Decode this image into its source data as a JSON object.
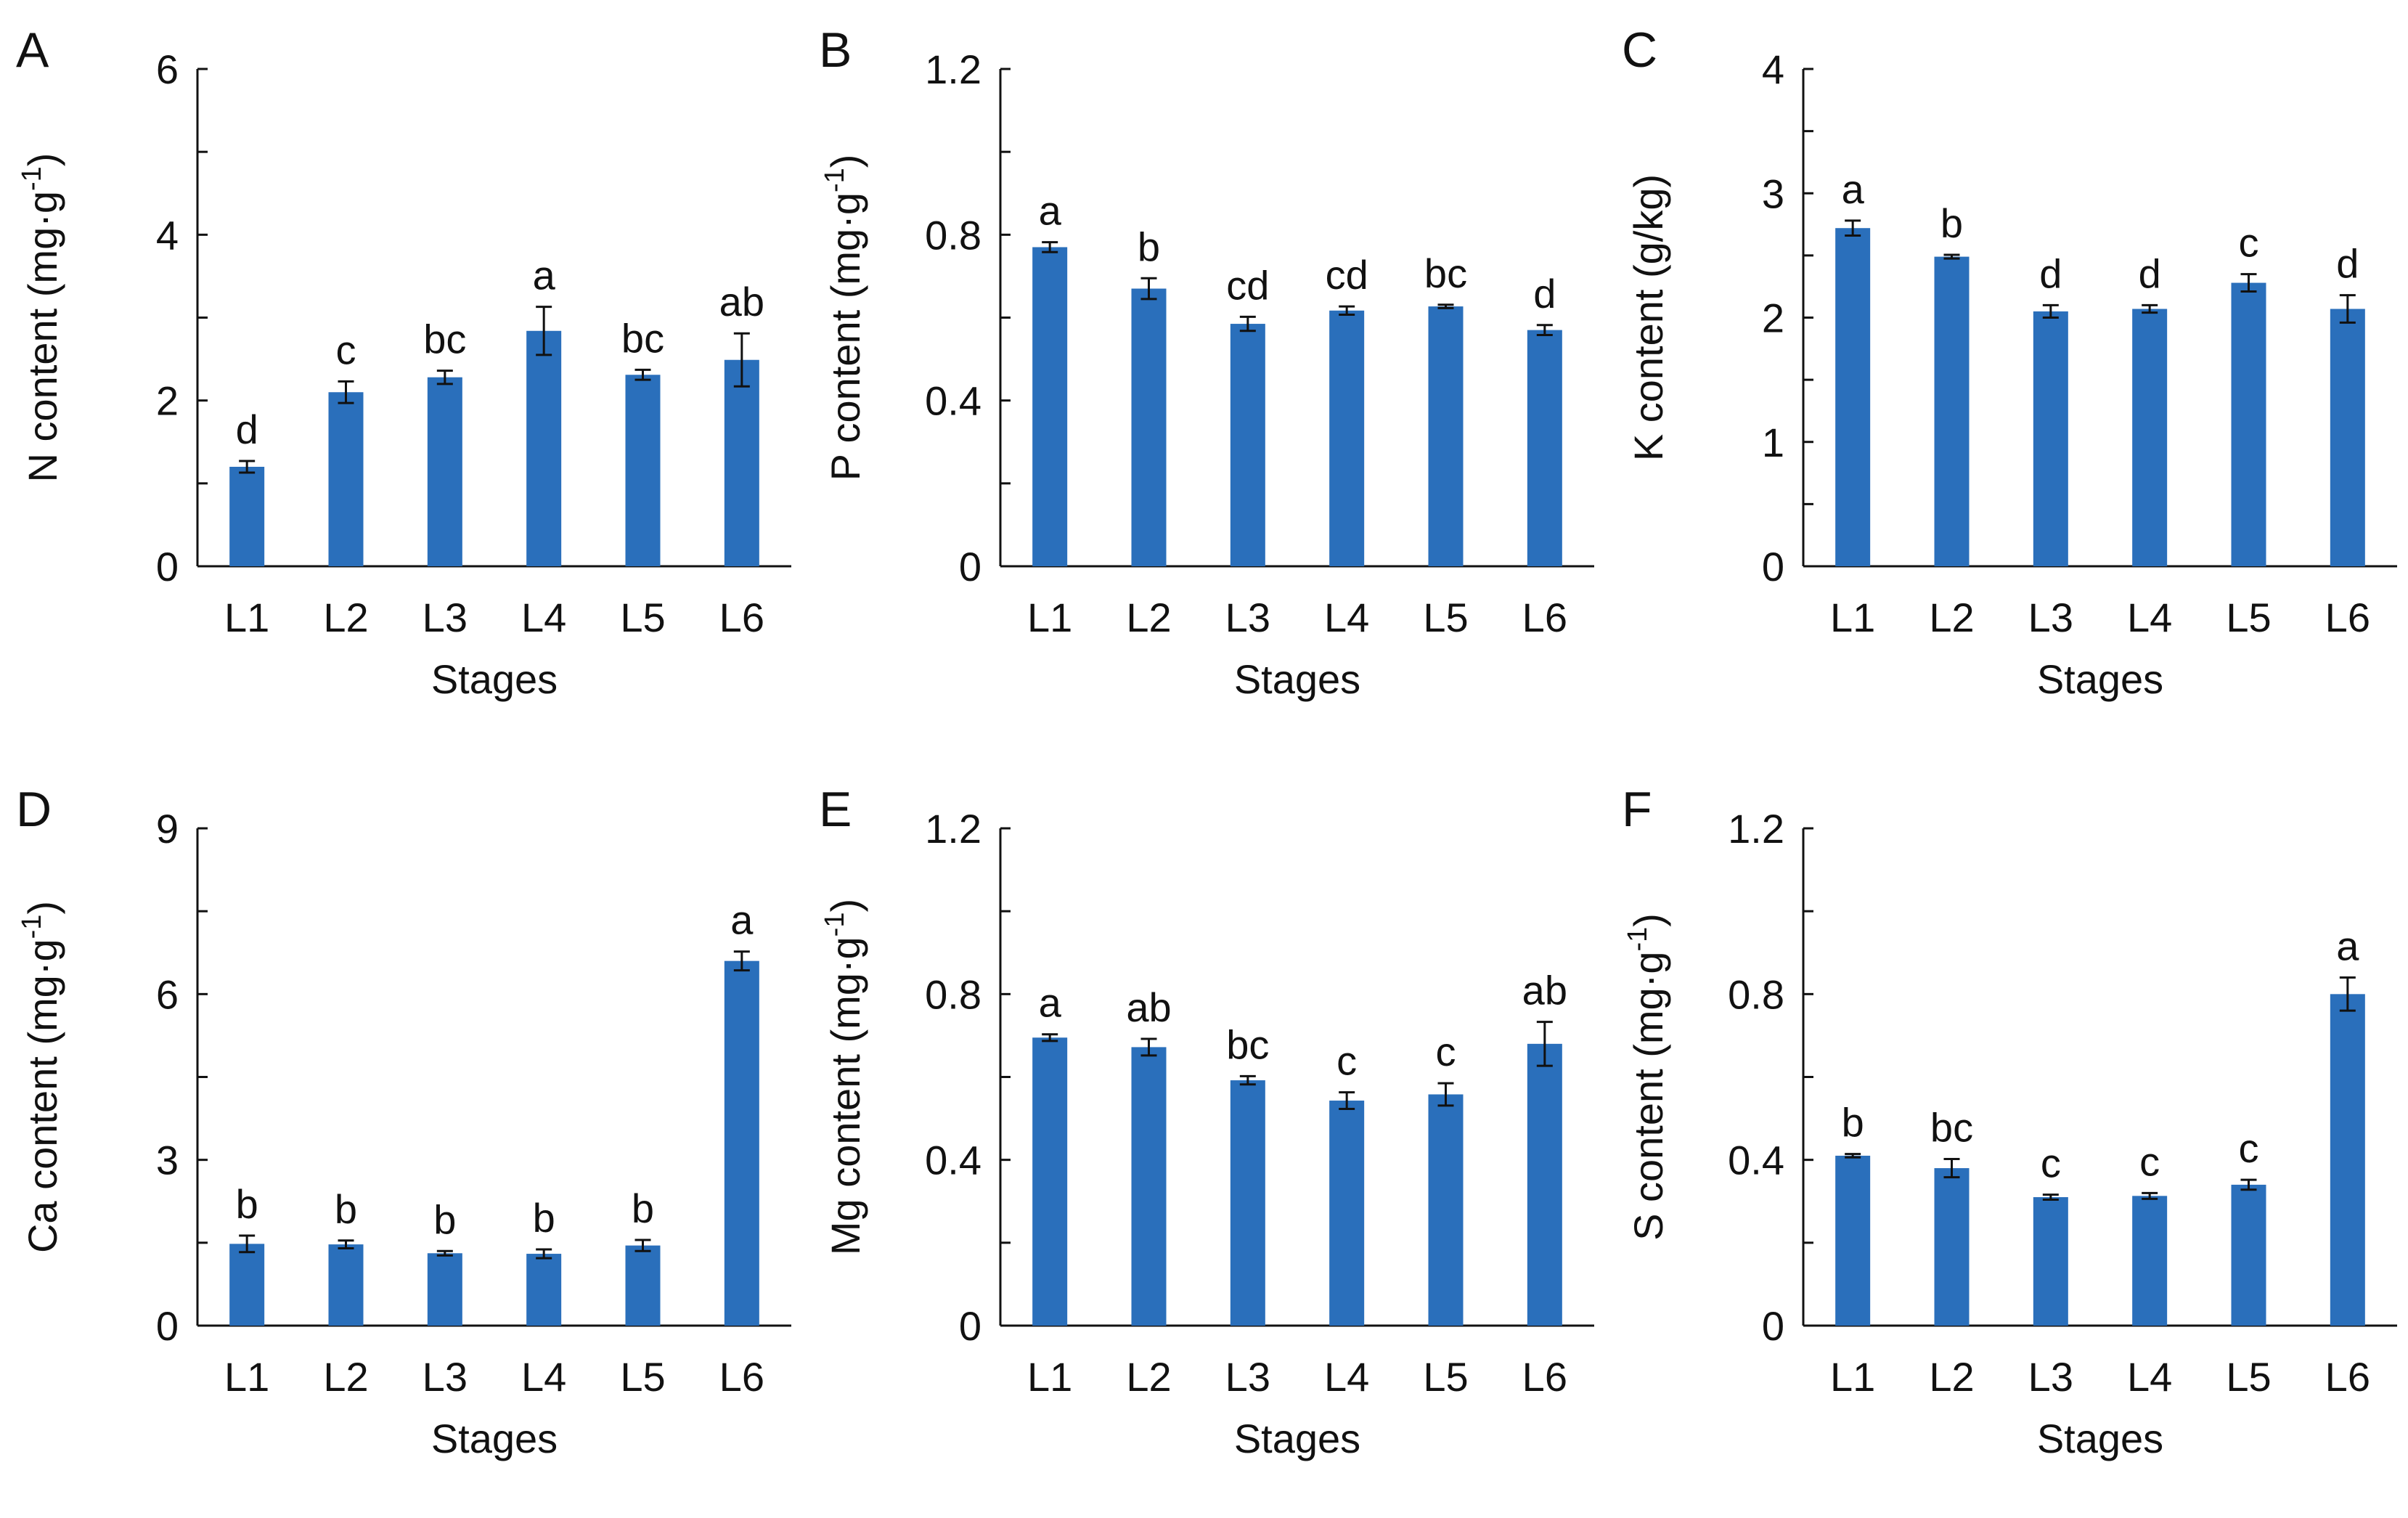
{
  "colors": {
    "bar": "#2a6fbb",
    "axis": "#111111",
    "text": "#111111"
  },
  "chart_data": [
    {
      "panel": "A",
      "type": "bar",
      "categories": [
        "L1",
        "L2",
        "L3",
        "L4",
        "L5",
        "L6"
      ],
      "values": [
        1.2,
        2.1,
        2.28,
        2.84,
        2.31,
        2.49
      ],
      "errors": [
        0.07,
        0.13,
        0.08,
        0.29,
        0.06,
        0.32
      ],
      "letters": [
        "d",
        "c",
        "bc",
        "a",
        "bc",
        "ab"
      ],
      "ylim": [
        0,
        6
      ],
      "yticks": [
        "0",
        "2",
        "4",
        "6"
      ],
      "yminor_step": 1,
      "ylabel": "N content (mg·g⁻¹)",
      "ylabel_main": "N content (mg·g",
      "ylabel_sup": "-1",
      "ylabel_close": ")",
      "xlabel": "Stages"
    },
    {
      "panel": "B",
      "type": "bar",
      "categories": [
        "L1",
        "L2",
        "L3",
        "L4",
        "L5",
        "L6"
      ],
      "values": [
        0.77,
        0.67,
        0.585,
        0.617,
        0.627,
        0.57
      ],
      "errors": [
        0.012,
        0.025,
        0.017,
        0.01,
        0.004,
        0.012
      ],
      "letters": [
        "a",
        "b",
        "cd",
        "cd",
        "bc",
        "d"
      ],
      "ylim": [
        0,
        1.2
      ],
      "yticks": [
        "0",
        "0.4",
        "0.8",
        "1.2"
      ],
      "yminor_step": 0.2,
      "ylabel": "P content (mg·g⁻¹)",
      "ylabel_main": "P content (mg·g",
      "ylabel_sup": "-1",
      "ylabel_close": ")",
      "xlabel": "Stages"
    },
    {
      "panel": "C",
      "type": "bar",
      "categories": [
        "L1",
        "L2",
        "L3",
        "L4",
        "L5",
        "L6"
      ],
      "values": [
        2.72,
        2.49,
        2.05,
        2.07,
        2.28,
        2.07
      ],
      "errors": [
        0.06,
        0.015,
        0.05,
        0.03,
        0.07,
        0.11
      ],
      "letters": [
        "a",
        "b",
        "d",
        "d",
        "c",
        "d"
      ],
      "ylim": [
        0,
        4
      ],
      "yticks": [
        "0",
        "1",
        "2",
        "3",
        "4"
      ],
      "yminor_step": 0.5,
      "ylabel": "K content (g/kg)",
      "ylabel_main": "K content (g/kg)",
      "ylabel_sup": "",
      "ylabel_close": "",
      "xlabel": "Stages"
    },
    {
      "panel": "D",
      "type": "bar",
      "categories": [
        "L1",
        "L2",
        "L3",
        "L4",
        "L5",
        "L6"
      ],
      "values": [
        1.48,
        1.47,
        1.31,
        1.3,
        1.45,
        6.6
      ],
      "errors": [
        0.15,
        0.07,
        0.04,
        0.08,
        0.1,
        0.17
      ],
      "letters": [
        "b",
        "b",
        "b",
        "b",
        "b",
        "a"
      ],
      "ylim": [
        0,
        9
      ],
      "yticks": [
        "0",
        "3",
        "6",
        "9"
      ],
      "yminor_step": 1.5,
      "ylabel": "Ca content (mg·g⁻¹)",
      "ylabel_main": "Ca content (mg·g",
      "ylabel_sup": "-1",
      "ylabel_close": ")",
      "xlabel": "Stages"
    },
    {
      "panel": "E",
      "type": "bar",
      "categories": [
        "L1",
        "L2",
        "L3",
        "L4",
        "L5",
        "L6"
      ],
      "values": [
        0.695,
        0.672,
        0.592,
        0.543,
        0.558,
        0.68
      ],
      "errors": [
        0.008,
        0.02,
        0.01,
        0.02,
        0.027,
        0.053
      ],
      "letters": [
        "a",
        "ab",
        "bc",
        "c",
        "c",
        "ab"
      ],
      "ylim": [
        0,
        1.2
      ],
      "yticks": [
        "0",
        "0.4",
        "0.8",
        "1.2"
      ],
      "yminor_step": 0.2,
      "ylabel": "Mg content (mg·g⁻¹)",
      "ylabel_main": "Mg content (mg·g",
      "ylabel_sup": "-1",
      "ylabel_close": ")",
      "xlabel": "Stages"
    },
    {
      "panel": "F",
      "type": "bar",
      "categories": [
        "L1",
        "L2",
        "L3",
        "L4",
        "L5",
        "L6"
      ],
      "values": [
        0.41,
        0.38,
        0.31,
        0.313,
        0.34,
        0.8
      ],
      "errors": [
        0.004,
        0.022,
        0.006,
        0.007,
        0.012,
        0.04
      ],
      "letters": [
        "b",
        "bc",
        "c",
        "c",
        "c",
        "a"
      ],
      "ylim": [
        0,
        1.2
      ],
      "yticks": [
        "0",
        "0.4",
        "0.8",
        "1.2"
      ],
      "yminor_step": 0.2,
      "ylabel": "S content (mg·g⁻¹)",
      "ylabel_main": "S content (mg·g",
      "ylabel_sup": "-1",
      "ylabel_close": ")",
      "xlabel": "Stages"
    }
  ]
}
